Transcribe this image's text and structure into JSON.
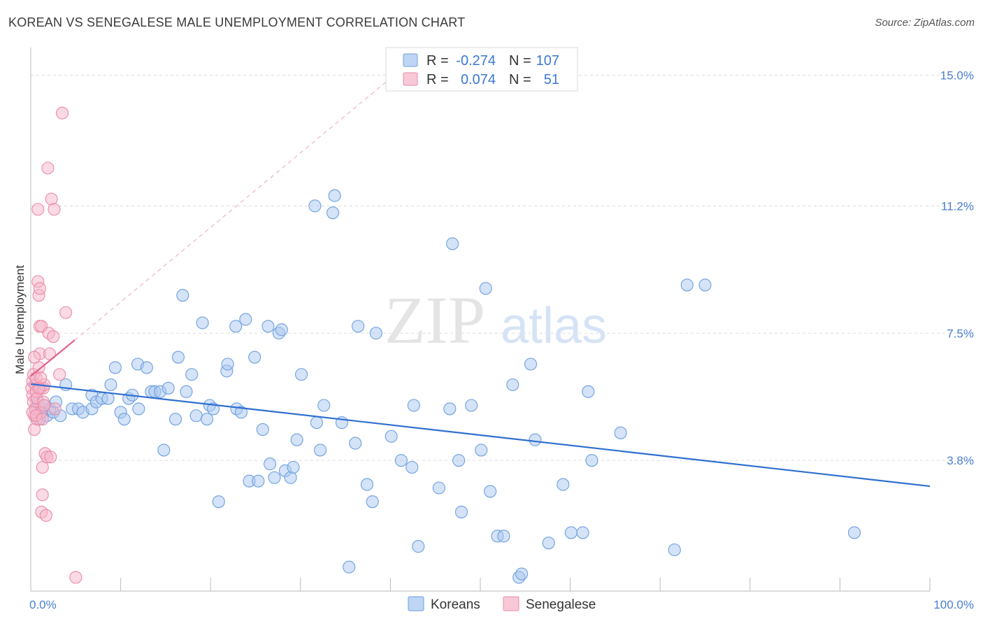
{
  "header": {
    "title": "KOREAN VS SENEGALESE MALE UNEMPLOYMENT CORRELATION CHART",
    "source": "Source: ZipAtlas.com"
  },
  "watermark": {
    "zip": "ZIP",
    "atlas": "atlas"
  },
  "legend": {
    "rows": [
      {
        "r_label": "R =",
        "r_value": "-0.274",
        "n_label": "N =",
        "n_value": "107",
        "color": "#a9c7f0"
      },
      {
        "r_label": "R =",
        "r_value": "0.074",
        "n_label": "N =",
        "n_value": "51",
        "color": "#f6b6c9"
      }
    ]
  },
  "bottom_legend": [
    {
      "label": "Koreans",
      "color": "#a9c7f0"
    },
    {
      "label": "Senegalese",
      "color": "#f6b6c9"
    }
  ],
  "colors": {
    "koreans_fill": "#a9c7f0",
    "koreans_stroke": "#6d9fe0",
    "koreans_line": "#2f6fd0",
    "senegalese_fill": "#f6b6c9",
    "senegalese_stroke": "#ea8aa8",
    "senegalese_line": "#e0608a",
    "grid": "#dcdcdc",
    "tick_label": "#4a7fd0"
  },
  "chart_data": {
    "type": "scatter",
    "title": "KOREAN VS SENEGALESE MALE UNEMPLOYMENT CORRELATION CHART",
    "xlabel": "",
    "ylabel": "Male Unemployment",
    "xlim": [
      0,
      100
    ],
    "ylim": [
      0,
      15.6
    ],
    "x_tick_labels": [
      {
        "value": 0,
        "label": "0.0%"
      },
      {
        "value": 100,
        "label": "100.0%"
      }
    ],
    "y_tick_labels": [
      {
        "value": 3.8,
        "label": "3.8%"
      },
      {
        "value": 7.5,
        "label": "7.5%"
      },
      {
        "value": 11.2,
        "label": "11.2%"
      },
      {
        "value": 15.0,
        "label": "15.0%"
      }
    ],
    "grid": true,
    "legend_position": "top-center",
    "series": [
      {
        "name": "Koreans",
        "r": -0.274,
        "n": 107,
        "trend": {
          "x0": 0,
          "y0": 6.02,
          "x1": 100,
          "y1": 3.05
        },
        "points": [
          [
            0.5,
            5.3
          ],
          [
            0.8,
            5.5
          ],
          [
            1.0,
            5.0
          ],
          [
            1.2,
            5.2
          ],
          [
            1.5,
            5.4
          ],
          [
            1.8,
            5.1
          ],
          [
            2.1,
            5.3
          ],
          [
            2.5,
            5.2
          ],
          [
            2.8,
            5.5
          ],
          [
            3.3,
            5.1
          ],
          [
            3.9,
            6.0
          ],
          [
            4.6,
            5.3
          ],
          [
            5.3,
            5.3
          ],
          [
            5.8,
            5.2
          ],
          [
            6.8,
            5.3
          ],
          [
            6.8,
            5.7
          ],
          [
            7.3,
            5.5
          ],
          [
            7.9,
            5.6
          ],
          [
            8.6,
            5.6
          ],
          [
            8.9,
            6.0
          ],
          [
            9.4,
            6.5
          ],
          [
            10.0,
            5.2
          ],
          [
            10.4,
            5.0
          ],
          [
            10.9,
            5.6
          ],
          [
            11.3,
            5.7
          ],
          [
            11.9,
            6.6
          ],
          [
            12.0,
            5.3
          ],
          [
            12.9,
            6.5
          ],
          [
            13.4,
            5.8
          ],
          [
            13.8,
            5.8
          ],
          [
            14.4,
            5.8
          ],
          [
            14.8,
            4.1
          ],
          [
            15.3,
            5.9
          ],
          [
            16.1,
            5.0
          ],
          [
            16.4,
            6.8
          ],
          [
            16.9,
            8.6
          ],
          [
            17.3,
            5.8
          ],
          [
            17.9,
            6.3
          ],
          [
            18.4,
            5.1
          ],
          [
            19.1,
            7.8
          ],
          [
            19.6,
            5.0
          ],
          [
            19.9,
            5.4
          ],
          [
            20.3,
            5.3
          ],
          [
            20.9,
            2.6
          ],
          [
            21.8,
            6.4
          ],
          [
            21.9,
            6.6
          ],
          [
            22.8,
            7.7
          ],
          [
            22.9,
            5.3
          ],
          [
            23.4,
            5.2
          ],
          [
            23.9,
            7.9
          ],
          [
            24.3,
            3.2
          ],
          [
            24.9,
            6.8
          ],
          [
            25.3,
            3.2
          ],
          [
            25.8,
            4.7
          ],
          [
            26.4,
            7.7
          ],
          [
            26.6,
            3.7
          ],
          [
            27.1,
            3.3
          ],
          [
            27.6,
            7.5
          ],
          [
            27.9,
            7.6
          ],
          [
            28.3,
            3.5
          ],
          [
            28.9,
            3.3
          ],
          [
            29.2,
            3.6
          ],
          [
            29.6,
            4.4
          ],
          [
            30.1,
            6.3
          ],
          [
            31.6,
            11.2
          ],
          [
            31.8,
            4.9
          ],
          [
            32.2,
            4.1
          ],
          [
            32.6,
            5.4
          ],
          [
            33.6,
            11.0
          ],
          [
            33.8,
            11.5
          ],
          [
            34.6,
            4.9
          ],
          [
            35.4,
            0.7
          ],
          [
            36.1,
            4.3
          ],
          [
            36.4,
            7.7
          ],
          [
            37.4,
            3.1
          ],
          [
            38.0,
            2.6
          ],
          [
            38.4,
            7.5
          ],
          [
            40.1,
            4.5
          ],
          [
            41.2,
            3.8
          ],
          [
            42.4,
            3.6
          ],
          [
            42.6,
            5.4
          ],
          [
            43.1,
            1.3
          ],
          [
            45.4,
            3.0
          ],
          [
            46.6,
            5.3
          ],
          [
            46.9,
            10.1
          ],
          [
            47.6,
            3.8
          ],
          [
            47.9,
            2.3
          ],
          [
            49.0,
            5.4
          ],
          [
            50.1,
            4.1
          ],
          [
            50.6,
            8.8
          ],
          [
            51.1,
            2.9
          ],
          [
            51.9,
            1.6
          ],
          [
            52.6,
            1.6
          ],
          [
            53.6,
            6.0
          ],
          [
            54.3,
            0.4
          ],
          [
            54.6,
            0.5
          ],
          [
            55.6,
            6.6
          ],
          [
            56.1,
            4.4
          ],
          [
            57.6,
            1.4
          ],
          [
            59.2,
            3.1
          ],
          [
            60.1,
            1.7
          ],
          [
            61.4,
            1.7
          ],
          [
            62.0,
            5.8
          ],
          [
            62.4,
            3.8
          ],
          [
            65.6,
            4.6
          ],
          [
            71.6,
            1.2
          ],
          [
            73.0,
            8.9
          ],
          [
            75.0,
            8.9
          ],
          [
            91.6,
            1.7
          ]
        ]
      },
      {
        "name": "Senegalese",
        "r": 0.074,
        "n": 51,
        "trend": {
          "x0": 0,
          "y0": 6.25,
          "x1": 4.9,
          "y1": 7.3
        },
        "trend_extension": {
          "x0": 4.9,
          "y0": 7.3,
          "x1": 39.5,
          "y1": 14.8
        },
        "points": [
          [
            0.1,
            5.9
          ],
          [
            0.2,
            6.1
          ],
          [
            0.2,
            5.7
          ],
          [
            0.3,
            6.3
          ],
          [
            0.3,
            5.5
          ],
          [
            0.4,
            5.1
          ],
          [
            0.4,
            4.7
          ],
          [
            0.5,
            6.0
          ],
          [
            0.5,
            5.3
          ],
          [
            0.6,
            5.8
          ],
          [
            0.6,
            6.2
          ],
          [
            0.7,
            5.6
          ],
          [
            0.7,
            5.0
          ],
          [
            0.8,
            9.0
          ],
          [
            0.8,
            11.1
          ],
          [
            0.9,
            8.6
          ],
          [
            0.9,
            6.5
          ],
          [
            1.0,
            8.8
          ],
          [
            1.0,
            7.7
          ],
          [
            1.0,
            6.9
          ],
          [
            1.1,
            5.9
          ],
          [
            1.1,
            5.2
          ],
          [
            1.2,
            7.7
          ],
          [
            1.2,
            2.3
          ],
          [
            1.3,
            2.8
          ],
          [
            1.3,
            3.6
          ],
          [
            1.4,
            5.5
          ],
          [
            1.4,
            5.9
          ],
          [
            1.5,
            6.0
          ],
          [
            1.5,
            5.4
          ],
          [
            1.6,
            4.0
          ],
          [
            1.7,
            2.2
          ],
          [
            1.8,
            3.9
          ],
          [
            1.9,
            12.3
          ],
          [
            2.0,
            7.5
          ],
          [
            2.1,
            6.9
          ],
          [
            2.2,
            3.9
          ],
          [
            2.3,
            11.4
          ],
          [
            2.5,
            7.4
          ],
          [
            2.6,
            11.1
          ],
          [
            2.7,
            5.3
          ],
          [
            3.2,
            6.3
          ],
          [
            3.5,
            13.9
          ],
          [
            3.9,
            8.1
          ],
          [
            5.0,
            0.4
          ],
          [
            0.2,
            5.2
          ],
          [
            0.4,
            6.8
          ],
          [
            0.6,
            5.1
          ],
          [
            0.9,
            5.9
          ],
          [
            1.1,
            6.2
          ],
          [
            1.3,
            5.0
          ]
        ]
      }
    ]
  }
}
